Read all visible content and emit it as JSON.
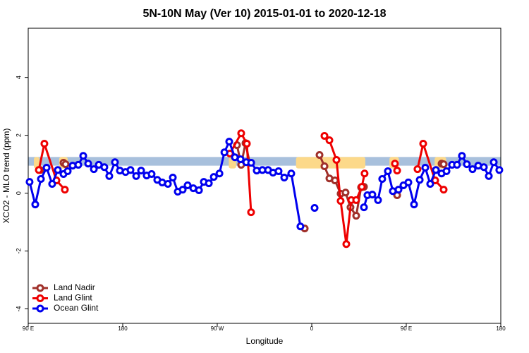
{
  "chart_data": {
    "type": "line",
    "title": "5N-10N May (Ver 10)   2015-01-01 to 2020-12-18",
    "x_label": "Longitude",
    "y_label": "XCO2 - MLO trend (ppm)",
    "xlim": [
      90,
      540
    ],
    "xticks": [
      {
        "value": 90,
        "label": "90 E"
      },
      {
        "value": 180,
        "label": "180"
      },
      {
        "value": 270,
        "label": "90 W"
      },
      {
        "value": 360,
        "label": "0"
      },
      {
        "value": 450,
        "label": "90 E"
      },
      {
        "value": 540,
        "label": "180"
      }
    ],
    "ylim": [
      -4.5,
      5.7
    ],
    "yticks": [
      -4,
      -2,
      0,
      2,
      4
    ],
    "legend": "lower left",
    "band": {
      "ylim": [
        0.95,
        1.25
      ],
      "color": "#a8c0dc"
    },
    "highlights": {
      "color": "#fcd98a",
      "x": [
        [
          95.4,
          100.7
        ],
        [
          119.5,
          127.6
        ],
        [
          281,
          288
        ],
        [
          345,
          411
        ],
        [
          434,
          443
        ],
        [
          477,
          488
        ]
      ]
    },
    "series": [
      {
        "name": "Land Nadir",
        "color": "#a0302a",
        "x": [
          101.4,
          null,
          123.6,
          125.6,
          null,
          288.8,
          292.8,
          296.9,
          300.9,
          null,
          353.3,
          null,
          367.4,
          372.1,
          376.8,
          382.1,
          387.5,
          392.2,
          396.9,
          402.3,
          407.0,
          409.7,
          null,
          441.3,
          null,
          483.6,
          485.6
        ],
        "values": [
          0.8,
          null,
          1.05,
          1.0,
          null,
          1.66,
          0.98,
          1.73,
          1.05,
          null,
          -1.22,
          null,
          1.32,
          0.93,
          0.51,
          0.44,
          -0.02,
          0.02,
          -0.49,
          -0.78,
          0.2,
          0.22,
          null,
          -0.07,
          null,
          1.02,
          1.0
        ]
      },
      {
        "name": "Land Glint",
        "color": "#ee0000",
        "x": [
          100.1,
          105.4,
          116.9,
          124.9,
          null,
          282.1,
          292.8,
          298.2,
          302.2,
          null,
          372.1,
          376.8,
          383.5,
          387.5,
          392.9,
          397.6,
          402.3,
          407.7,
          410.3,
          null,
          439.2,
          441.3,
          null,
          460.7,
          466.1,
          477.5,
          485.6
        ],
        "values": [
          0.8,
          1.71,
          0.44,
          0.12,
          null,
          1.37,
          2.07,
          1.71,
          -0.66,
          null,
          1.98,
          1.83,
          1.15,
          -0.27,
          -1.76,
          -0.24,
          -0.24,
          0.22,
          0.68,
          null,
          1.02,
          0.78,
          null,
          0.83,
          1.71,
          0.44,
          0.12
        ]
      },
      {
        "name": "Ocean Glint",
        "color": "#0000ee",
        "x": [
          91.3,
          96.7,
          102.1,
          107.5,
          112.8,
          118.2,
          123.6,
          127.6,
          132.3,
          137.7,
          142.4,
          147.1,
          152.5,
          157.2,
          162.5,
          167.2,
          172.6,
          177.3,
          182.7,
          187.4,
          192.8,
          197.5,
          202.8,
          207.5,
          212.9,
          217.6,
          223.0,
          227.7,
          232.4,
          237.1,
          241.8,
          247.2,
          252.6,
          257.2,
          262.0,
          266.7,
          272.1,
          276.8,
          281.4,
          286.8,
          292.2,
          297.6,
          302.3,
          307.6,
          313.0,
          318.4,
          323.1,
          328.4,
          333.8,
          340.5,
          349.2,
          null,
          362.7,
          null,
          409.7,
          413.0,
          417.7,
          423.1,
          427.1,
          432.5,
          437.2,
          442.6,
          447.3,
          452.0,
          457.4,
          462.8,
          468.1,
          472.8,
          478.2,
          483.6,
          488.3,
          493.6,
          498.3,
          503.0,
          507.7,
          513.1,
          518.5,
          523.9,
          528.6,
          533.3,
          538.6
        ],
        "values": [
          0.39,
          -0.39,
          0.49,
          0.88,
          0.32,
          0.8,
          0.66,
          0.76,
          0.95,
          0.98,
          1.29,
          1.02,
          0.83,
          0.98,
          0.9,
          0.59,
          1.07,
          0.78,
          0.73,
          0.8,
          0.59,
          0.78,
          0.61,
          0.66,
          0.46,
          0.37,
          0.32,
          0.54,
          0.05,
          0.12,
          0.27,
          0.17,
          0.1,
          0.39,
          0.34,
          0.56,
          0.68,
          1.41,
          1.78,
          1.24,
          1.17,
          1.07,
          1.05,
          0.78,
          0.8,
          0.8,
          0.71,
          0.76,
          0.54,
          0.68,
          -1.15,
          null,
          -0.51,
          null,
          -0.49,
          -0.07,
          -0.05,
          -0.24,
          0.49,
          0.76,
          0.07,
          0.12,
          0.27,
          0.37,
          -0.39,
          0.46,
          0.88,
          0.32,
          0.8,
          0.68,
          0.76,
          0.98,
          0.98,
          1.29,
          1.0,
          0.83,
          0.95,
          0.9,
          0.59,
          1.07,
          0.8
        ]
      }
    ]
  }
}
